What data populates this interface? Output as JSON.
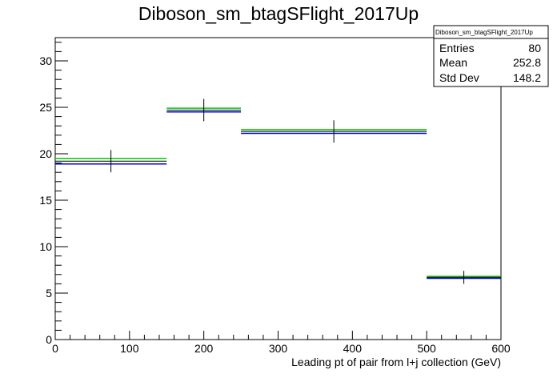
{
  "chart_data": {
    "type": "line",
    "title": "Diboson_sm_btagSFlight_2017Up",
    "xlabel": "Leading pt of pair from l+j collection (GeV)",
    "ylabel": "",
    "xlim": [
      0,
      600
    ],
    "ylim": [
      0,
      32.5
    ],
    "x_ticks": [
      0,
      100,
      200,
      300,
      400,
      500,
      600
    ],
    "y_ticks": [
      0,
      5,
      10,
      15,
      20,
      25,
      30
    ],
    "grid": false,
    "bins": [
      {
        "x_low": 0,
        "x_high": 150,
        "x_center": 75,
        "y": 19.2,
        "err": 1.2,
        "y_green": 19.5,
        "y_blue": 18.9
      },
      {
        "x_low": 150,
        "x_high": 250,
        "x_center": 200,
        "y": 24.7,
        "err": 1.2,
        "y_green": 24.9,
        "y_blue": 24.5
      },
      {
        "x_low": 250,
        "x_high": 500,
        "x_center": 375,
        "y": 22.4,
        "err": 1.2,
        "y_green": 22.6,
        "y_blue": 22.2
      },
      {
        "x_low": 500,
        "x_high": 600,
        "x_center": 550,
        "y": 6.7,
        "err": 0.7,
        "y_green": 6.8,
        "y_blue": 6.6
      }
    ],
    "colors": {
      "nominal": "#000000",
      "up": "#00cc00",
      "down": "#0000cc"
    }
  },
  "stats_box": {
    "title": "Diboson_sm_btagSFlight_2017Up",
    "rows": [
      {
        "label": "Entries",
        "value": "80"
      },
      {
        "label": "Mean",
        "value": "252.8"
      },
      {
        "label": "Std Dev",
        "value": "148.2"
      }
    ]
  }
}
